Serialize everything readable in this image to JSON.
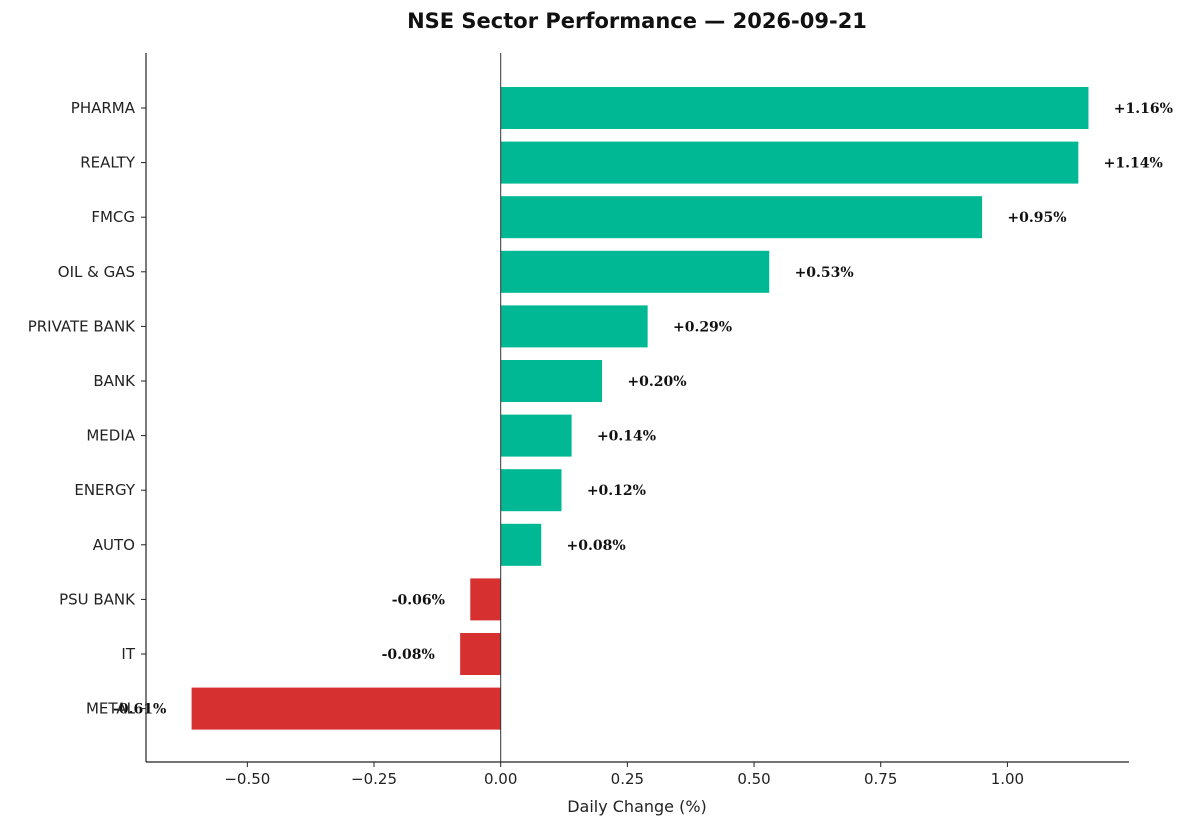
{
  "chart_data": {
    "type": "bar",
    "orientation": "horizontal",
    "title": "NSE Sector Performance — 2026-09-21",
    "xlabel": "Daily Change (%)",
    "ylabel": "",
    "xlim": [
      -0.7,
      1.24
    ],
    "xticks": [
      -0.5,
      -0.25,
      0.0,
      0.25,
      0.5,
      0.75,
      1.0
    ],
    "xtick_labels": [
      "−0.50",
      "−0.25",
      "0.00",
      "0.25",
      "0.50",
      "0.75",
      "1.00"
    ],
    "grid": false,
    "legend": "none",
    "positive_color": "#00b894",
    "negative_color": "#d63031",
    "categories": [
      "PHARMA",
      "REALTY",
      "FMCG",
      "OIL & GAS",
      "PRIVATE BANK",
      "BANK",
      "MEDIA",
      "ENERGY",
      "AUTO",
      "PSU BANK",
      "IT",
      "METAL"
    ],
    "values": [
      1.16,
      1.14,
      0.95,
      0.53,
      0.29,
      0.2,
      0.14,
      0.12,
      0.08,
      -0.06,
      -0.08,
      -0.61
    ],
    "value_labels": [
      "+1.16%",
      "+1.14%",
      "+0.95%",
      "+0.53%",
      "+0.29%",
      "+0.20%",
      "+0.14%",
      "+0.12%",
      "+0.08%",
      "-0.06%",
      "-0.08%",
      "-0.61%"
    ]
  }
}
